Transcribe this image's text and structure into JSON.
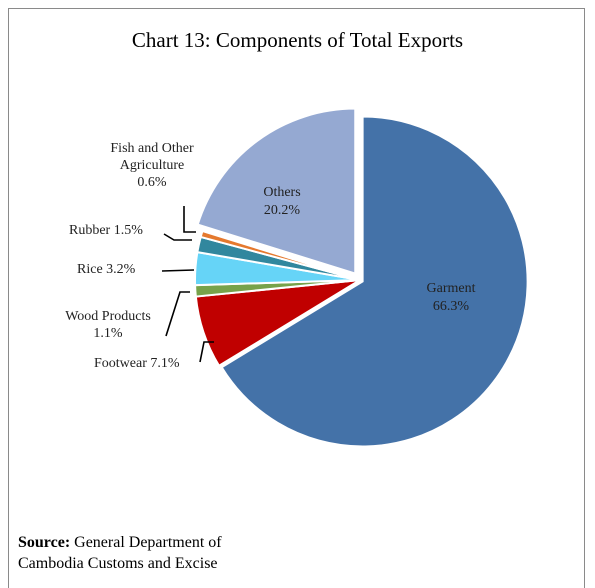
{
  "chart_data": {
    "type": "pie",
    "title": "Chart 13: Components of Total Exports",
    "slices": [
      {
        "name": "Garment",
        "value": 66.3,
        "label": "66.3%",
        "color": "#4472A8"
      },
      {
        "name": "Footwear",
        "value": 7.1,
        "label": "7.1%",
        "color": "#C00000"
      },
      {
        "name": "Wood Products",
        "value": 1.1,
        "label": "1.1%",
        "color": "#77A24A"
      },
      {
        "name": "Rice",
        "value": 3.2,
        "label": "3.2%",
        "color": "#66D4F7"
      },
      {
        "name": "Rubber",
        "value": 1.5,
        "label": "1.5%",
        "color": "#31879E"
      },
      {
        "name": "Fish and Other Agriculture",
        "value": 0.6,
        "label": "0.6%",
        "color": "#E5792E"
      },
      {
        "name": "Others",
        "value": 20.2,
        "label": "20.2%",
        "color": "#95A9D2"
      }
    ],
    "legend": "none"
  },
  "labels": {
    "garment": [
      "Garment",
      "66.3%"
    ],
    "others": [
      "Others",
      "20.2%"
    ],
    "fish": [
      "Fish and Other",
      "Agriculture",
      "0.6%"
    ],
    "rubber": "Rubber 1.5%",
    "rice": "Rice 3.2%",
    "wood": [
      "Wood Products",
      "1.1%"
    ],
    "footwear": "Footwear 7.1%"
  },
  "source": {
    "prefix": "Source:",
    "line1": " General Department of",
    "line2": "Cambodia Customs and Excise"
  }
}
